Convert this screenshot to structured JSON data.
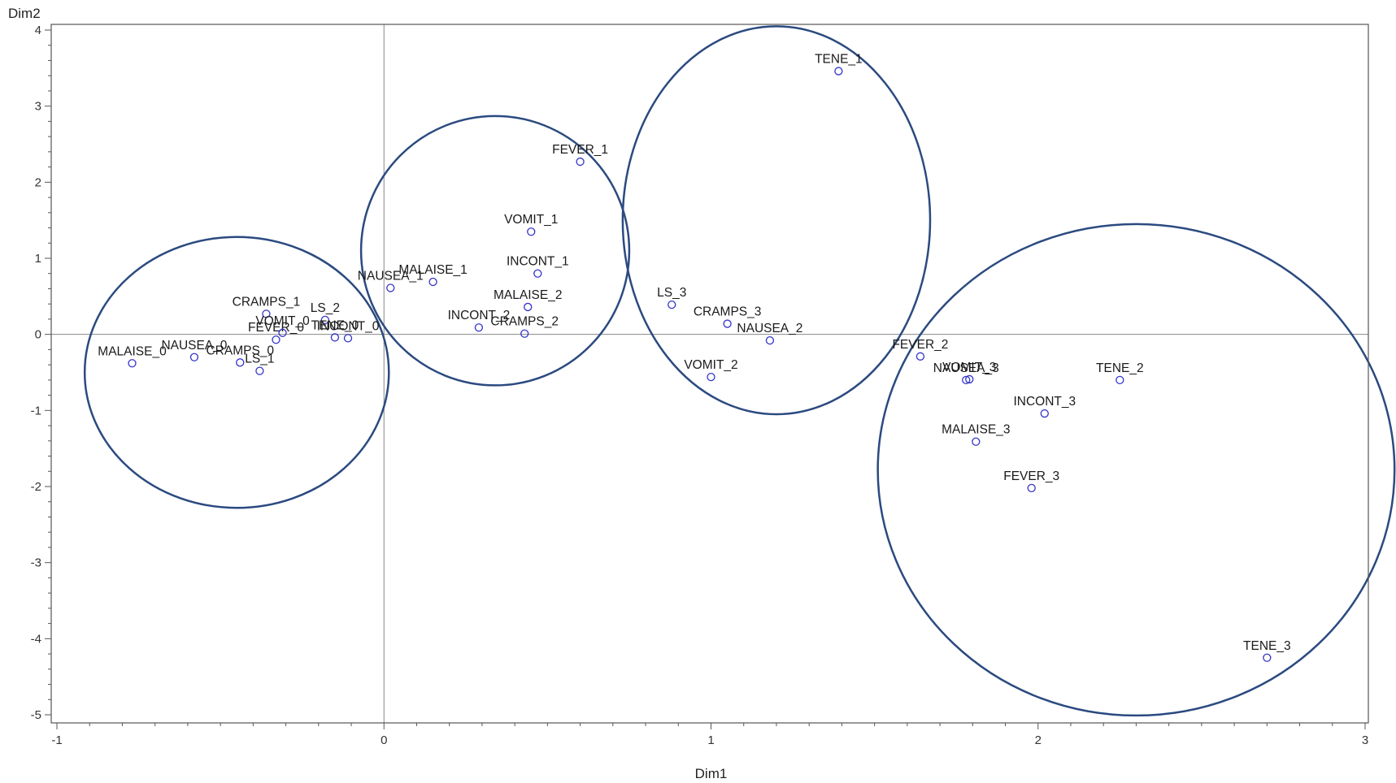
{
  "chart_data": {
    "type": "scatter",
    "title": "",
    "xlabel": "Dim1",
    "ylabel": "Dim2",
    "xlim": [
      -1,
      3
    ],
    "ylim": [
      -5,
      4
    ],
    "x_ticks": [
      -1,
      0,
      1,
      2,
      3
    ],
    "y_ticks": [
      -5,
      -4,
      -3,
      -2,
      -1,
      0,
      1,
      2,
      3,
      4
    ],
    "reference_lines": {
      "x": 0,
      "y": 0
    },
    "grid": false,
    "legend": "none",
    "colors": {
      "marker": "#3333cc",
      "ellipse": "#2b4a80",
      "axes": "#555555",
      "reference": "#888888"
    },
    "points": [
      {
        "label": "MALAISE_0",
        "x": -0.77,
        "y": -0.38
      },
      {
        "label": "NAUSEA_0",
        "x": -0.58,
        "y": -0.3
      },
      {
        "label": "CRAMPS_0",
        "x": -0.44,
        "y": -0.37
      },
      {
        "label": "LS_1",
        "x": -0.38,
        "y": -0.48
      },
      {
        "label": "CRAMPS_1",
        "x": -0.36,
        "y": 0.27
      },
      {
        "label": "FEVER_0",
        "x": -0.33,
        "y": -0.07
      },
      {
        "label": "VOMIT_0",
        "x": -0.31,
        "y": 0.02
      },
      {
        "label": "LS_2",
        "x": -0.18,
        "y": 0.19
      },
      {
        "label": "TENE_0",
        "x": -0.15,
        "y": -0.04
      },
      {
        "label": "INCONT_0",
        "x": -0.11,
        "y": -0.05
      },
      {
        "label": "NAUSEA_1",
        "x": 0.02,
        "y": 0.61
      },
      {
        "label": "MALAISE_1",
        "x": 0.15,
        "y": 0.69
      },
      {
        "label": "INCONT_2",
        "x": 0.29,
        "y": 0.09
      },
      {
        "label": "CRAMPS_2",
        "x": 0.43,
        "y": 0.01
      },
      {
        "label": "MALAISE_2",
        "x": 0.44,
        "y": 0.36
      },
      {
        "label": "VOMIT_1",
        "x": 0.45,
        "y": 1.35
      },
      {
        "label": "INCONT_1",
        "x": 0.47,
        "y": 0.8
      },
      {
        "label": "FEVER_1",
        "x": 0.6,
        "y": 2.27
      },
      {
        "label": "LS_3",
        "x": 0.88,
        "y": 0.39
      },
      {
        "label": "VOMIT_2",
        "x": 1.0,
        "y": -0.56
      },
      {
        "label": "CRAMPS_3",
        "x": 1.05,
        "y": 0.14
      },
      {
        "label": "NAUSEA_2",
        "x": 1.18,
        "y": -0.08
      },
      {
        "label": "TENE_1",
        "x": 1.39,
        "y": 3.46
      },
      {
        "label": "FEVER_2",
        "x": 1.64,
        "y": -0.29
      },
      {
        "label": "NAUSEA_3",
        "x": 1.78,
        "y": -0.6
      },
      {
        "label": "VOMIT_3",
        "x": 1.79,
        "y": -0.59
      },
      {
        "label": "MALAISE_3",
        "x": 1.81,
        "y": -1.41
      },
      {
        "label": "FEVER_3",
        "x": 1.98,
        "y": -2.02
      },
      {
        "label": "INCONT_3",
        "x": 2.02,
        "y": -1.04
      },
      {
        "label": "TENE_2",
        "x": 2.25,
        "y": -0.6
      },
      {
        "label": "TENE_3",
        "x": 2.7,
        "y": -4.25
      }
    ],
    "ellipses": [
      {
        "cx": -0.45,
        "cy": -0.5,
        "rx": 0.465,
        "ry": 1.78
      },
      {
        "cx": 0.34,
        "cy": 1.1,
        "rx": 0.41,
        "ry": 1.77
      },
      {
        "cx": 1.2,
        "cy": 1.5,
        "rx": 0.47,
        "ry": 2.55
      },
      {
        "cx": 2.3,
        "cy": -1.78,
        "rx": 0.79,
        "ry": 3.23
      }
    ]
  }
}
